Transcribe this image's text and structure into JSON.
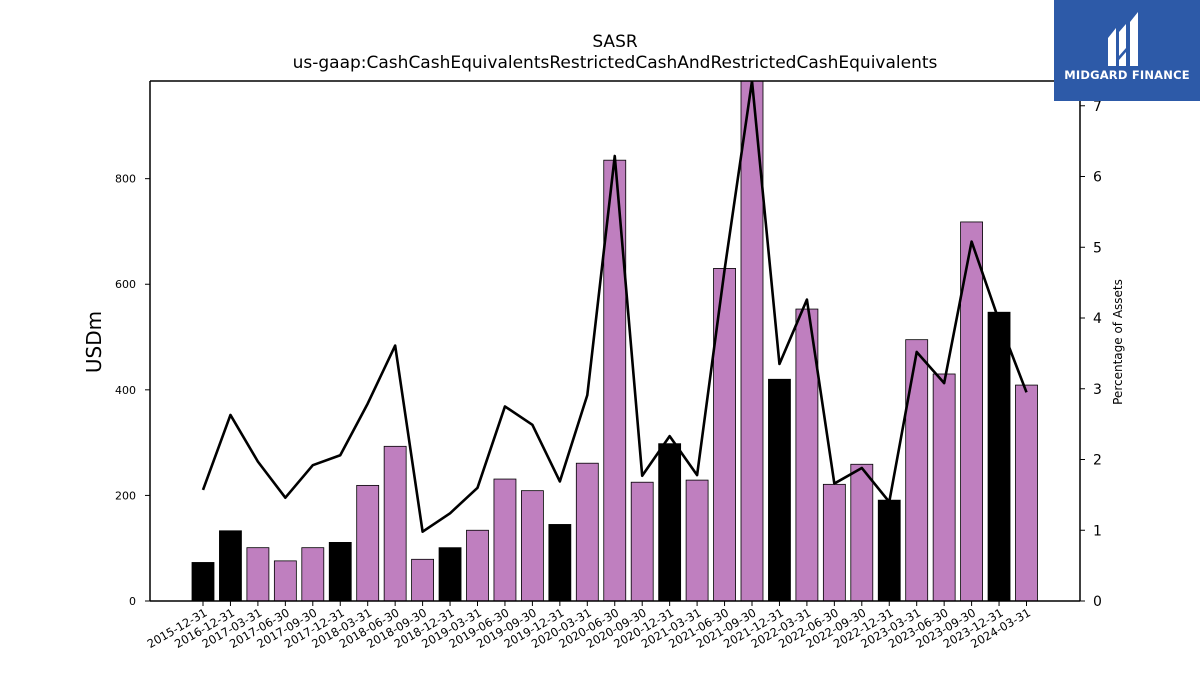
{
  "brand": {
    "name": "MIDGARD FINANCE",
    "icon": "midgard-logo-icon",
    "color": "#2d5aa8"
  },
  "chart_data": {
    "type": "bar",
    "title": "SASR",
    "subtitle": "us-gaap:CashCashEquivalentsRestrictedCashAndRestrictedCashEquivalents",
    "ylabel": "USDm",
    "y2label": "Percentage of Assets",
    "ylim": [
      0,
      985
    ],
    "y2lim": [
      0,
      7.35
    ],
    "yticks": [
      0,
      200,
      400,
      600,
      800
    ],
    "y2ticks": [
      0,
      1,
      2,
      3,
      4,
      5,
      6,
      7
    ],
    "grid": false,
    "colors": {
      "annual": "#000000",
      "quarterly": "#bf7fbf",
      "line": "#000000"
    },
    "categories": [
      "2015-12-31",
      "2016-12-31",
      "2017-03-31",
      "2017-06-30",
      "2017-09-30",
      "2017-12-31",
      "2018-03-31",
      "2018-06-30",
      "2018-09-30",
      "2018-12-31",
      "2019-03-31",
      "2019-06-30",
      "2019-09-30",
      "2019-12-31",
      "2020-03-31",
      "2020-06-30",
      "2020-09-30",
      "2020-12-31",
      "2021-03-31",
      "2021-06-30",
      "2021-09-30",
      "2021-12-31",
      "2022-03-31",
      "2022-06-30",
      "2022-09-30",
      "2022-12-31",
      "2023-03-31",
      "2023-06-30",
      "2023-09-30",
      "2023-12-31",
      "2024-03-31"
    ],
    "series": [
      {
        "values": [
          73,
          133,
          101,
          76,
          101,
          111,
          219,
          293,
          79,
          101,
          134,
          231,
          209,
          145,
          261,
          835,
          225,
          298,
          229,
          630,
          985,
          420,
          553,
          221,
          259,
          191,
          495,
          430,
          718,
          547,
          409
        ]
      },
      {
        "axis": "right",
        "values": [
          1.57,
          2.63,
          1.97,
          1.46,
          1.92,
          2.06,
          2.79,
          3.61,
          0.98,
          1.24,
          1.6,
          2.75,
          2.49,
          1.69,
          2.91,
          6.29,
          1.77,
          2.33,
          1.78,
          4.68,
          7.35,
          3.35,
          4.26,
          1.66,
          1.88,
          1.4,
          3.52,
          3.08,
          5.08,
          3.96,
          2.95
        ]
      }
    ],
    "bar_kind": [
      "annual",
      "annual",
      "quarterly",
      "quarterly",
      "quarterly",
      "annual",
      "quarterly",
      "quarterly",
      "quarterly",
      "annual",
      "quarterly",
      "quarterly",
      "quarterly",
      "annual",
      "quarterly",
      "quarterly",
      "quarterly",
      "annual",
      "quarterly",
      "quarterly",
      "quarterly",
      "annual",
      "quarterly",
      "quarterly",
      "quarterly",
      "annual",
      "quarterly",
      "quarterly",
      "quarterly",
      "annual",
      "quarterly"
    ]
  }
}
